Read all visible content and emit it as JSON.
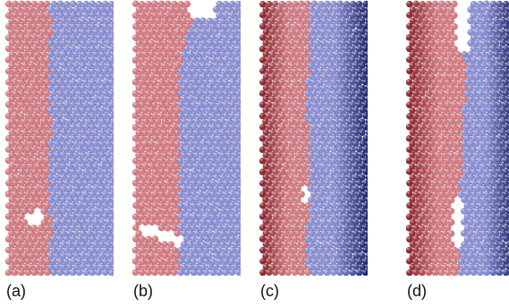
{
  "figure": {
    "panels": [
      {
        "label": "(a)",
        "description_name": "flat-interface",
        "colors": {
          "left": "#d97c82",
          "right": "#8b92d9",
          "left_dark": "#d97c82",
          "right_dark": "#8b92d9"
        }
      },
      {
        "label": "(b)",
        "description_name": "perturbed-interface",
        "colors": {
          "left": "#d97c82",
          "right": "#8b92d9",
          "left_dark": "#d97c82",
          "right_dark": "#8b92d9"
        }
      },
      {
        "label": "(c)",
        "description_name": "gradient-interface",
        "colors": {
          "left": "#d97c82",
          "right": "#8b92d9",
          "left_dark": "#8a1d26",
          "right_dark": "#1d246f"
        }
      },
      {
        "label": "(d)",
        "description_name": "stepped-gradient-interface",
        "colors": {
          "left": "#d97c82",
          "right": "#8b92d9",
          "left_dark": "#8a1d26",
          "right_dark": "#1d246f"
        }
      }
    ]
  }
}
